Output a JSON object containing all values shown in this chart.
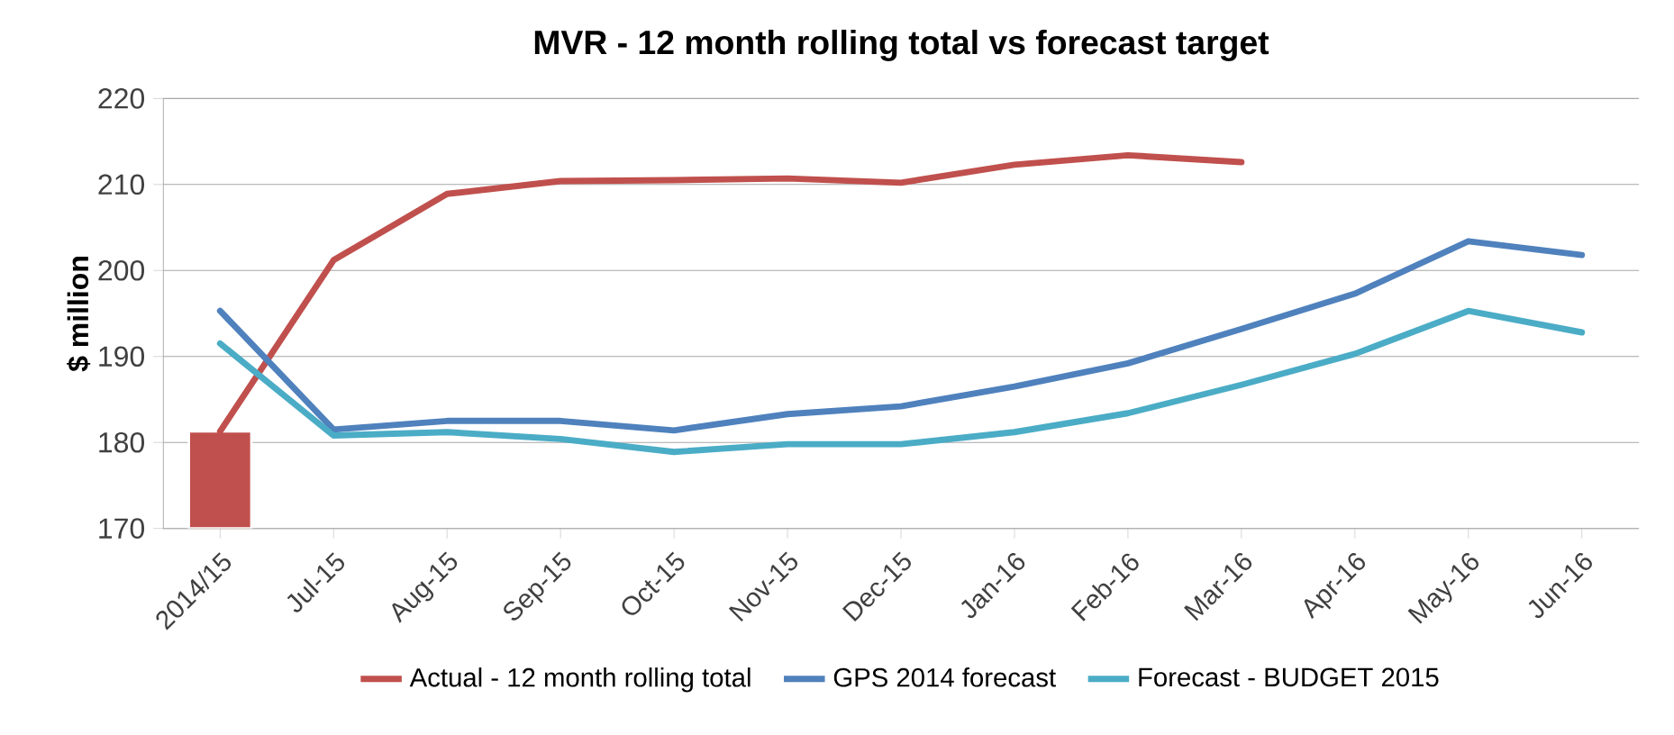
{
  "chart_data": {
    "type": "line",
    "title": "MVR - 12 month rolling total vs forecast target",
    "ylabel": "$ million",
    "categories": [
      "2014/15",
      "Jul-15",
      "Aug-15",
      "Sep-15",
      "Oct-15",
      "Nov-15",
      "Dec-15",
      "Jan-16",
      "Feb-16",
      "Mar-16",
      "Apr-16",
      "May-16",
      "Jun-16"
    ],
    "series": [
      {
        "type": "bar",
        "color": "#c0504d",
        "values": [
          181.3,
          null,
          null,
          null,
          null,
          null,
          null,
          null,
          null,
          null,
          null,
          null,
          null
        ]
      },
      {
        "name": "Actual - 12 month rolling total",
        "color": "#c0504d",
        "values": [
          181.3,
          201.2,
          208.9,
          210.4,
          210.5,
          210.7,
          210.2,
          212.3,
          213.4,
          212.6,
          null,
          null,
          null
        ]
      },
      {
        "name": "GPS 2014  forecast",
        "color": "#4f81bd",
        "values": [
          195.3,
          181.5,
          182.5,
          182.5,
          181.4,
          183.3,
          184.2,
          186.5,
          189.2,
          193.2,
          197.3,
          203.4,
          201.8
        ]
      },
      {
        "name": "Forecast - BUDGET 2015",
        "color": "#4bacc6",
        "values": [
          191.5,
          180.8,
          181.2,
          180.4,
          178.9,
          179.8,
          179.8,
          181.2,
          183.4,
          186.7,
          190.3,
          195.3,
          192.8
        ]
      }
    ],
    "ylim": [
      170,
      220
    ],
    "yticks": [
      170,
      180,
      190,
      200,
      210,
      220
    ],
    "grid": "y",
    "legend": "bottom",
    "marker": "none",
    "line_style": "solid"
  }
}
